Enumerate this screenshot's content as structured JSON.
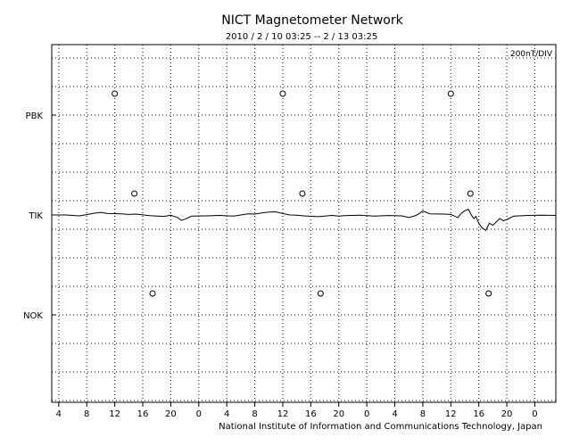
{
  "chart_data": {
    "type": "line",
    "title": "NICT Magnetometer Network",
    "subtitle": "2010 / 2 / 10   03:25 --  2 / 13   03:25",
    "scale_label": "200nT/DIV",
    "credit": "National Institute of Information and Communications Technology, Japan",
    "stations": [
      "PBK",
      "TIK",
      "NOK"
    ],
    "x_tick_labels": [
      "4",
      "8",
      "12",
      "16",
      "20",
      "0",
      "4",
      "8",
      "12",
      "16",
      "20",
      "0",
      "4",
      "8",
      "12",
      "16",
      "20",
      "0"
    ],
    "x_tick_hours": [
      1,
      5,
      9,
      13,
      17,
      21,
      25,
      29,
      33,
      37,
      41,
      45,
      49,
      53,
      57,
      61,
      65,
      69
    ],
    "x_range_hours": [
      0,
      72
    ],
    "markers": [
      {
        "station": "PBK",
        "hours": [
          9.0,
          33.0,
          57.0
        ]
      },
      {
        "station": "TIK",
        "hours": [
          11.8,
          35.8,
          59.8
        ]
      },
      {
        "station": "NOK",
        "hours": [
          14.4,
          38.4,
          62.4
        ]
      }
    ],
    "series": [
      {
        "name": "TIK",
        "x_hours": [
          0,
          2,
          4,
          6,
          7,
          8,
          10,
          11,
          12,
          14,
          16,
          17,
          18,
          18.5,
          19,
          20,
          22,
          24,
          26,
          28,
          29,
          30,
          31,
          32,
          33,
          34,
          35,
          36,
          38,
          40,
          41,
          42,
          44,
          46,
          48,
          50,
          51,
          52,
          52.5,
          53,
          54,
          56,
          57,
          58,
          58.5,
          59,
          59.5,
          60,
          60.3,
          60.6,
          61,
          61.5,
          62,
          62.5,
          63,
          64,
          64.5,
          65,
          66,
          68,
          70,
          72
        ],
        "values": [
          0,
          0,
          -6,
          12,
          18,
          10,
          8,
          4,
          6,
          -5,
          -10,
          -2,
          -18,
          -38,
          -30,
          -8,
          -6,
          -3,
          -8,
          8,
          6,
          14,
          20,
          22,
          10,
          0,
          -2,
          -6,
          -12,
          -3,
          -8,
          -4,
          -2,
          -8,
          -4,
          -6,
          -18,
          -4,
          10,
          28,
          8,
          6,
          4,
          -18,
          12,
          30,
          40,
          -5,
          -25,
          -10,
          -60,
          -92,
          -108,
          -58,
          -72,
          -25,
          -40,
          -32,
          -8,
          -3,
          -2,
          -3
        ]
      }
    ]
  }
}
